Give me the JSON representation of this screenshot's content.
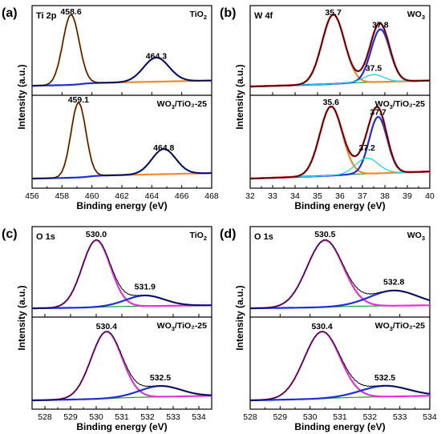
{
  "colors": {
    "black": "#000000",
    "orange": "#f28c28",
    "blue": "#1f2ed6",
    "red": "#e8141b",
    "green": "#1e9e2e",
    "cyan": "#1fd3e6",
    "magenta": "#e233d4"
  },
  "chart_data": [
    {
      "type": "line",
      "panel_label": "(a)",
      "region": "Ti 2p",
      "xlabel": "Binding energy (eV)",
      "ylabel": "Intensity (a.u.)",
      "xlim": [
        456,
        468
      ],
      "xticks": [
        456,
        458,
        460,
        462,
        464,
        466,
        468
      ],
      "x_reversed": false,
      "subpanels": [
        {
          "sample": "TiO2",
          "sample_label": "TiO",
          "sample_sub": "2",
          "sample_suffix": "",
          "peaks": [
            {
              "center": 458.6,
              "height": 0.93,
              "width": 0.55,
              "color": "orange",
              "label": "458.6"
            },
            {
              "center": 464.3,
              "height": 0.32,
              "width": 0.85,
              "color": "blue",
              "label": "464.3"
            }
          ],
          "background": {
            "start": 0.02,
            "end": 0.07,
            "step_at": 459.3,
            "step": 0.02
          },
          "peak_labels": [
            {
              "text": "458.6",
              "x": 458.6,
              "y": 0.97
            },
            {
              "text": "464.3",
              "x": 464.3,
              "y": 0.38
            }
          ]
        },
        {
          "sample": "WO3/TiO2-25",
          "sample_label": "WO",
          "sample_sub": "3",
          "sample_suffix": "/TiO₂-25",
          "peaks": [
            {
              "center": 459.1,
              "height": 0.95,
              "width": 0.5,
              "color": "orange",
              "label": "459.1"
            },
            {
              "center": 464.8,
              "height": 0.32,
              "width": 0.8,
              "color": "blue",
              "label": "464.8"
            }
          ],
          "background": {
            "start": 0.02,
            "end": 0.07,
            "step_at": 459.8,
            "step": 0.02
          },
          "peak_labels": [
            {
              "text": "459.1",
              "x": 459.1,
              "y": 0.99
            },
            {
              "text": "464.8",
              "x": 464.8,
              "y": 0.38
            }
          ]
        }
      ]
    },
    {
      "type": "line",
      "panel_label": "(b)",
      "region": "W 4f",
      "xlabel": "Binding energy (eV)",
      "ylabel": "Intensity (a.u.)",
      "xlim": [
        32,
        40
      ],
      "xticks": [
        32,
        33,
        34,
        35,
        36,
        37,
        38,
        39,
        40
      ],
      "x_reversed": false,
      "subpanels": [
        {
          "sample": "WO3",
          "sample_label": "WO",
          "sample_sub": "3",
          "sample_suffix": "",
          "peaks": [
            {
              "center": 35.7,
              "height": 0.92,
              "width": 0.5,
              "color": "orange",
              "label": "35.7"
            },
            {
              "center": 37.8,
              "height": 0.7,
              "width": 0.42,
              "color": "blue",
              "label": "37.8"
            },
            {
              "center": 37.5,
              "height": 0.1,
              "width": 0.45,
              "color": "cyan",
              "label": "37.5"
            }
          ],
          "background": {
            "start": 0.01,
            "end": 0.08,
            "step_at": 36.0,
            "step": 0.01
          },
          "peak_labels": [
            {
              "text": "35.7",
              "x": 35.7,
              "y": 0.96
            },
            {
              "text": "37.8",
              "x": 37.8,
              "y": 0.79
            },
            {
              "text": "37.5",
              "x": 37.5,
              "y": 0.22
            }
          ]
        },
        {
          "sample": "WO3/TiO2-25",
          "sample_label": "WO",
          "sample_sub": "3",
          "sample_suffix": "/TiO₂-25",
          "peaks": [
            {
              "center": 35.6,
              "height": 0.88,
              "width": 0.5,
              "color": "orange",
              "label": "35.6"
            },
            {
              "center": 37.7,
              "height": 0.72,
              "width": 0.4,
              "color": "blue",
              "label": "37.7"
            },
            {
              "center": 37.2,
              "height": 0.2,
              "width": 0.5,
              "color": "cyan",
              "label": "37.2"
            }
          ],
          "background": {
            "start": 0.02,
            "end": 0.1,
            "step_at": 36.0,
            "step": 0.01
          },
          "peak_labels": [
            {
              "text": "35.6",
              "x": 35.6,
              "y": 0.96
            },
            {
              "text": "37.7",
              "x": 37.7,
              "y": 0.83
            },
            {
              "text": "37.2",
              "x": 37.2,
              "y": 0.38
            }
          ]
        }
      ]
    },
    {
      "type": "line",
      "panel_label": "(c)",
      "region": "O 1s",
      "xlabel": "Binding energy (eV)",
      "ylabel": "Intensity (a.u.)",
      "xlim": [
        527.5,
        534.5
      ],
      "xticks": [
        528,
        529,
        530,
        531,
        532,
        533,
        534
      ],
      "x_reversed": false,
      "subpanels": [
        {
          "sample": "TiO2",
          "sample_label": "TiO",
          "sample_sub": "2",
          "sample_suffix": "",
          "peaks": [
            {
              "center": 530.0,
              "height": 0.88,
              "width": 0.55,
              "color": "magenta",
              "label": "530.0"
            },
            {
              "center": 531.9,
              "height": 0.14,
              "width": 0.75,
              "color": "blue",
              "label": "531.9"
            }
          ],
          "background": {
            "start": 0.01,
            "end": 0.04,
            "step_at": 530.2,
            "step": 0.01
          },
          "peak_labels": [
            {
              "text": "530.0",
              "x": 530.0,
              "y": 0.95
            },
            {
              "text": "531.9",
              "x": 531.9,
              "y": 0.26
            }
          ]
        },
        {
          "sample": "WO3/TiO2-25",
          "sample_label": "WO",
          "sample_sub": "3",
          "sample_suffix": "/TiO₂-25",
          "peaks": [
            {
              "center": 530.4,
              "height": 0.86,
              "width": 0.6,
              "color": "magenta",
              "label": "530.4"
            },
            {
              "center": 532.5,
              "height": 0.14,
              "width": 0.8,
              "color": "blue",
              "label": "532.5"
            }
          ],
          "background": {
            "start": 0.01,
            "end": 0.06,
            "step_at": 530.6,
            "step": 0.01
          },
          "peak_labels": [
            {
              "text": "530.4",
              "x": 530.4,
              "y": 0.93
            },
            {
              "text": "532.5",
              "x": 532.5,
              "y": 0.27
            }
          ]
        }
      ]
    },
    {
      "type": "line",
      "panel_label": "(d)",
      "region": "O 1s",
      "xlabel": "Binding energy (eV)",
      "ylabel": "Intensity (a.u.)",
      "xlim": [
        528,
        534
      ],
      "xticks": [
        528,
        529,
        530,
        531,
        532,
        533,
        534
      ],
      "x_reversed": false,
      "subpanels": [
        {
          "sample": "WO3",
          "sample_label": "WO",
          "sample_sub": "3",
          "sample_suffix": "",
          "peaks": [
            {
              "center": 530.5,
              "height": 0.88,
              "width": 0.6,
              "color": "magenta",
              "label": "530.5"
            },
            {
              "center": 532.8,
              "height": 0.2,
              "width": 0.8,
              "color": "blue",
              "label": "532.8"
            }
          ],
          "background": {
            "start": 0.01,
            "end": 0.04,
            "step_at": 530.8,
            "step": 0.01
          },
          "peak_labels": [
            {
              "text": "530.5",
              "x": 530.5,
              "y": 0.95
            },
            {
              "text": "532.8",
              "x": 532.8,
              "y": 0.32
            }
          ]
        },
        {
          "sample": "WO3/TiO2-25",
          "sample_label": "WO",
          "sample_sub": "3",
          "sample_suffix": "/TiO₂-25",
          "peaks": [
            {
              "center": 530.4,
              "height": 0.86,
              "width": 0.6,
              "color": "magenta",
              "label": "530.4"
            },
            {
              "center": 532.5,
              "height": 0.14,
              "width": 0.8,
              "color": "blue",
              "label": "532.5"
            }
          ],
          "background": {
            "start": 0.01,
            "end": 0.06,
            "step_at": 530.6,
            "step": 0.01
          },
          "peak_labels": [
            {
              "text": "530.4",
              "x": 530.4,
              "y": 0.93
            },
            {
              "text": "532.5",
              "x": 532.5,
              "y": 0.27
            }
          ]
        }
      ]
    }
  ]
}
